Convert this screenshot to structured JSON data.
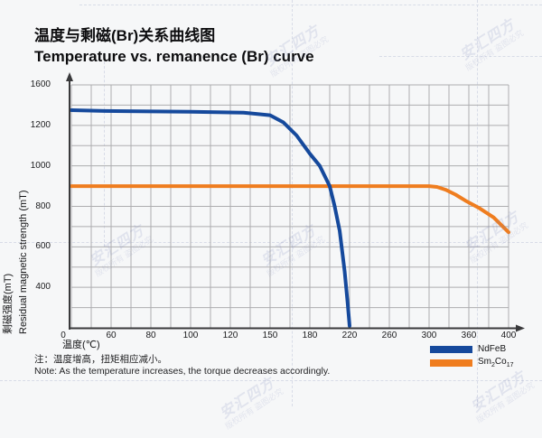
{
  "header": {
    "title_zh": "温度与剩磁(Br)关系曲线图",
    "title_en": "Temperature vs. remanence (Br) curve"
  },
  "note": {
    "zh": "注：温度增高，扭矩相应减小。",
    "en": "Note: As the temperature increases, the torque decreases accordingly."
  },
  "watermark": {
    "brand": "安汇四方",
    "claim": "版权所有 盗图必究",
    "color": "#7b84b8"
  },
  "legend": {
    "position": "bottom-right",
    "items": [
      {
        "color": "#15499c",
        "parts": {
          "p0": "NdFeB"
        }
      },
      {
        "color": "#ef7d1f",
        "parts": {
          "p0": "Sm",
          "sub0": "2",
          "p1": "Co",
          "sub1": "17"
        }
      }
    ]
  },
  "chart_data": {
    "type": "line",
    "title": "Temperature vs. remanence (Br) curve",
    "title_zh": "温度与剩磁(Br)关系曲线图",
    "xlabel": "温度(℃)",
    "ylabel_zh": "剩磁强度(mT)",
    "ylabel_en": "Residual magnetic strength (mT)",
    "grid": true,
    "origin_label": "0",
    "x_ticks": [
      0,
      60,
      80,
      100,
      120,
      150,
      180,
      220,
      260,
      300,
      360,
      400
    ],
    "y_ticks": [
      1600,
      1200,
      1000,
      800,
      600,
      400,
      0
    ],
    "xlim": [
      0,
      400
    ],
    "ylim": [
      0,
      1600
    ],
    "axis_note": "tick spacing is uniform even though tick values are not",
    "series": [
      {
        "name": "NdFeB",
        "color": "#15499c",
        "points": [
          [
            0,
            1350
          ],
          [
            50,
            1342
          ],
          [
            100,
            1334
          ],
          [
            130,
            1326
          ],
          [
            150,
            1300
          ],
          [
            160,
            1230
          ],
          [
            170,
            1150
          ],
          [
            180,
            1060
          ],
          [
            190,
            1000
          ],
          [
            200,
            900
          ],
          [
            205,
            800
          ],
          [
            210,
            680
          ],
          [
            215,
            480
          ],
          [
            218,
            250
          ],
          [
            220,
            20
          ]
        ]
      },
      {
        "name": "Sm2Co17",
        "color": "#ef7d1f",
        "points": [
          [
            0,
            900
          ],
          [
            60,
            900
          ],
          [
            120,
            900
          ],
          [
            180,
            900
          ],
          [
            240,
            900
          ],
          [
            300,
            900
          ],
          [
            312,
            896
          ],
          [
            325,
            882
          ],
          [
            340,
            858
          ],
          [
            355,
            828
          ],
          [
            370,
            793
          ],
          [
            385,
            745
          ],
          [
            400,
            672
          ]
        ]
      }
    ]
  }
}
